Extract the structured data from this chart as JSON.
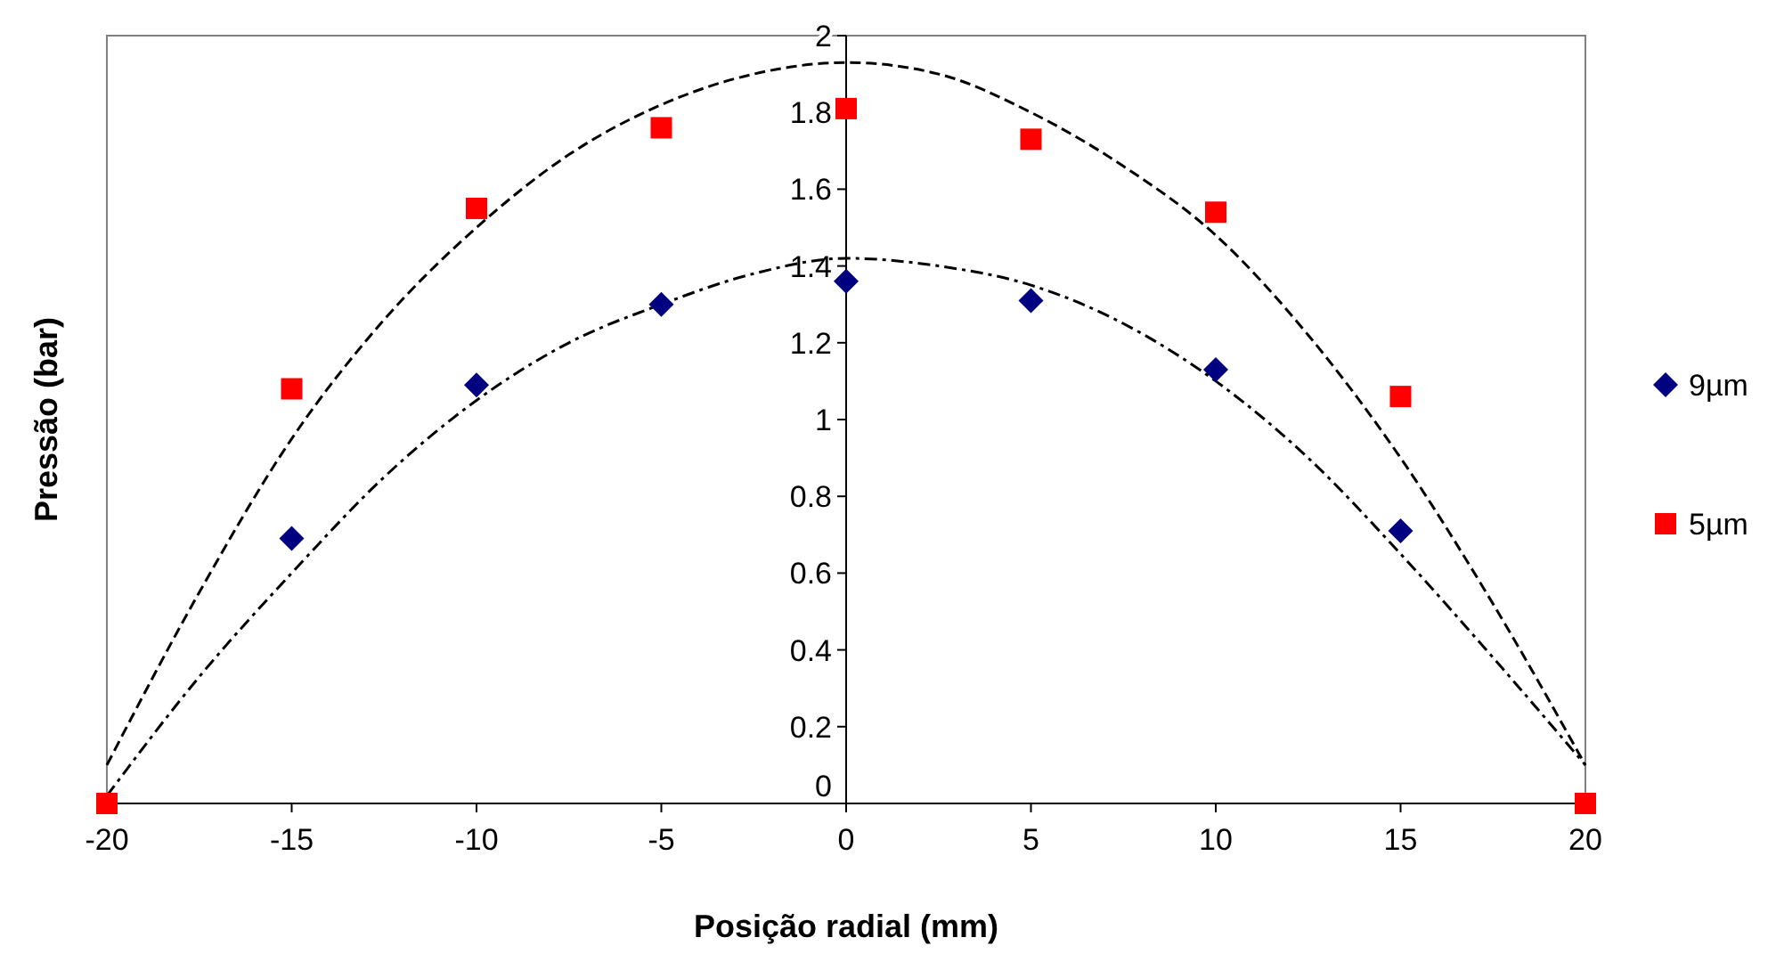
{
  "chart_data": {
    "type": "scatter",
    "xlabel": "Posição radial (mm)",
    "ylabel": "Pressão (bar)",
    "xlim": [
      -20,
      20
    ],
    "ylim": [
      0,
      2
    ],
    "xticks": [
      -20,
      -15,
      -10,
      -5,
      0,
      5,
      10,
      15,
      20
    ],
    "yticks": [
      0,
      0.2,
      0.4,
      0.6,
      0.8,
      1,
      1.2,
      1.4,
      1.6,
      1.8,
      2
    ],
    "grid": false,
    "legend": "right",
    "x": [
      -20,
      -15,
      -10,
      -5,
      0,
      5,
      10,
      15,
      20
    ],
    "series": [
      {
        "name": "9µm",
        "color": "#000080",
        "marker": "diamond",
        "values": [
          null,
          0.69,
          1.09,
          1.3,
          1.36,
          1.31,
          1.13,
          0.71,
          null
        ]
      },
      {
        "name": "5µm",
        "color": "#ff0000",
        "marker": "square",
        "values": [
          0,
          1.08,
          1.55,
          1.76,
          1.81,
          1.73,
          1.54,
          1.06,
          0
        ]
      },
      {
        "type": "line",
        "color": "#000000",
        "line_style": "dashdot",
        "x": [
          -20,
          -17.5,
          -15,
          -12.5,
          -10,
          -7.5,
          -5,
          -2.5,
          0,
          2.5,
          5,
          7.5,
          10,
          12.5,
          15,
          17.5,
          20
        ],
        "values": [
          0.02,
          0.33,
          0.6,
          0.85,
          1.05,
          1.2,
          1.3,
          1.38,
          1.42,
          1.4,
          1.35,
          1.25,
          1.1,
          0.9,
          0.65,
          0.38,
          0.1
        ]
      },
      {
        "type": "line",
        "color": "#000000",
        "line_style": "dashed",
        "x": [
          -20,
          -17.5,
          -15,
          -12.5,
          -10,
          -7.5,
          -5,
          -2.5,
          0,
          2.5,
          5,
          7.5,
          10,
          12.5,
          15,
          17.5,
          20
        ],
        "values": [
          0.1,
          0.55,
          0.95,
          1.26,
          1.5,
          1.69,
          1.82,
          1.9,
          1.93,
          1.9,
          1.8,
          1.66,
          1.48,
          1.22,
          0.9,
          0.52,
          0.1
        ]
      }
    ]
  }
}
